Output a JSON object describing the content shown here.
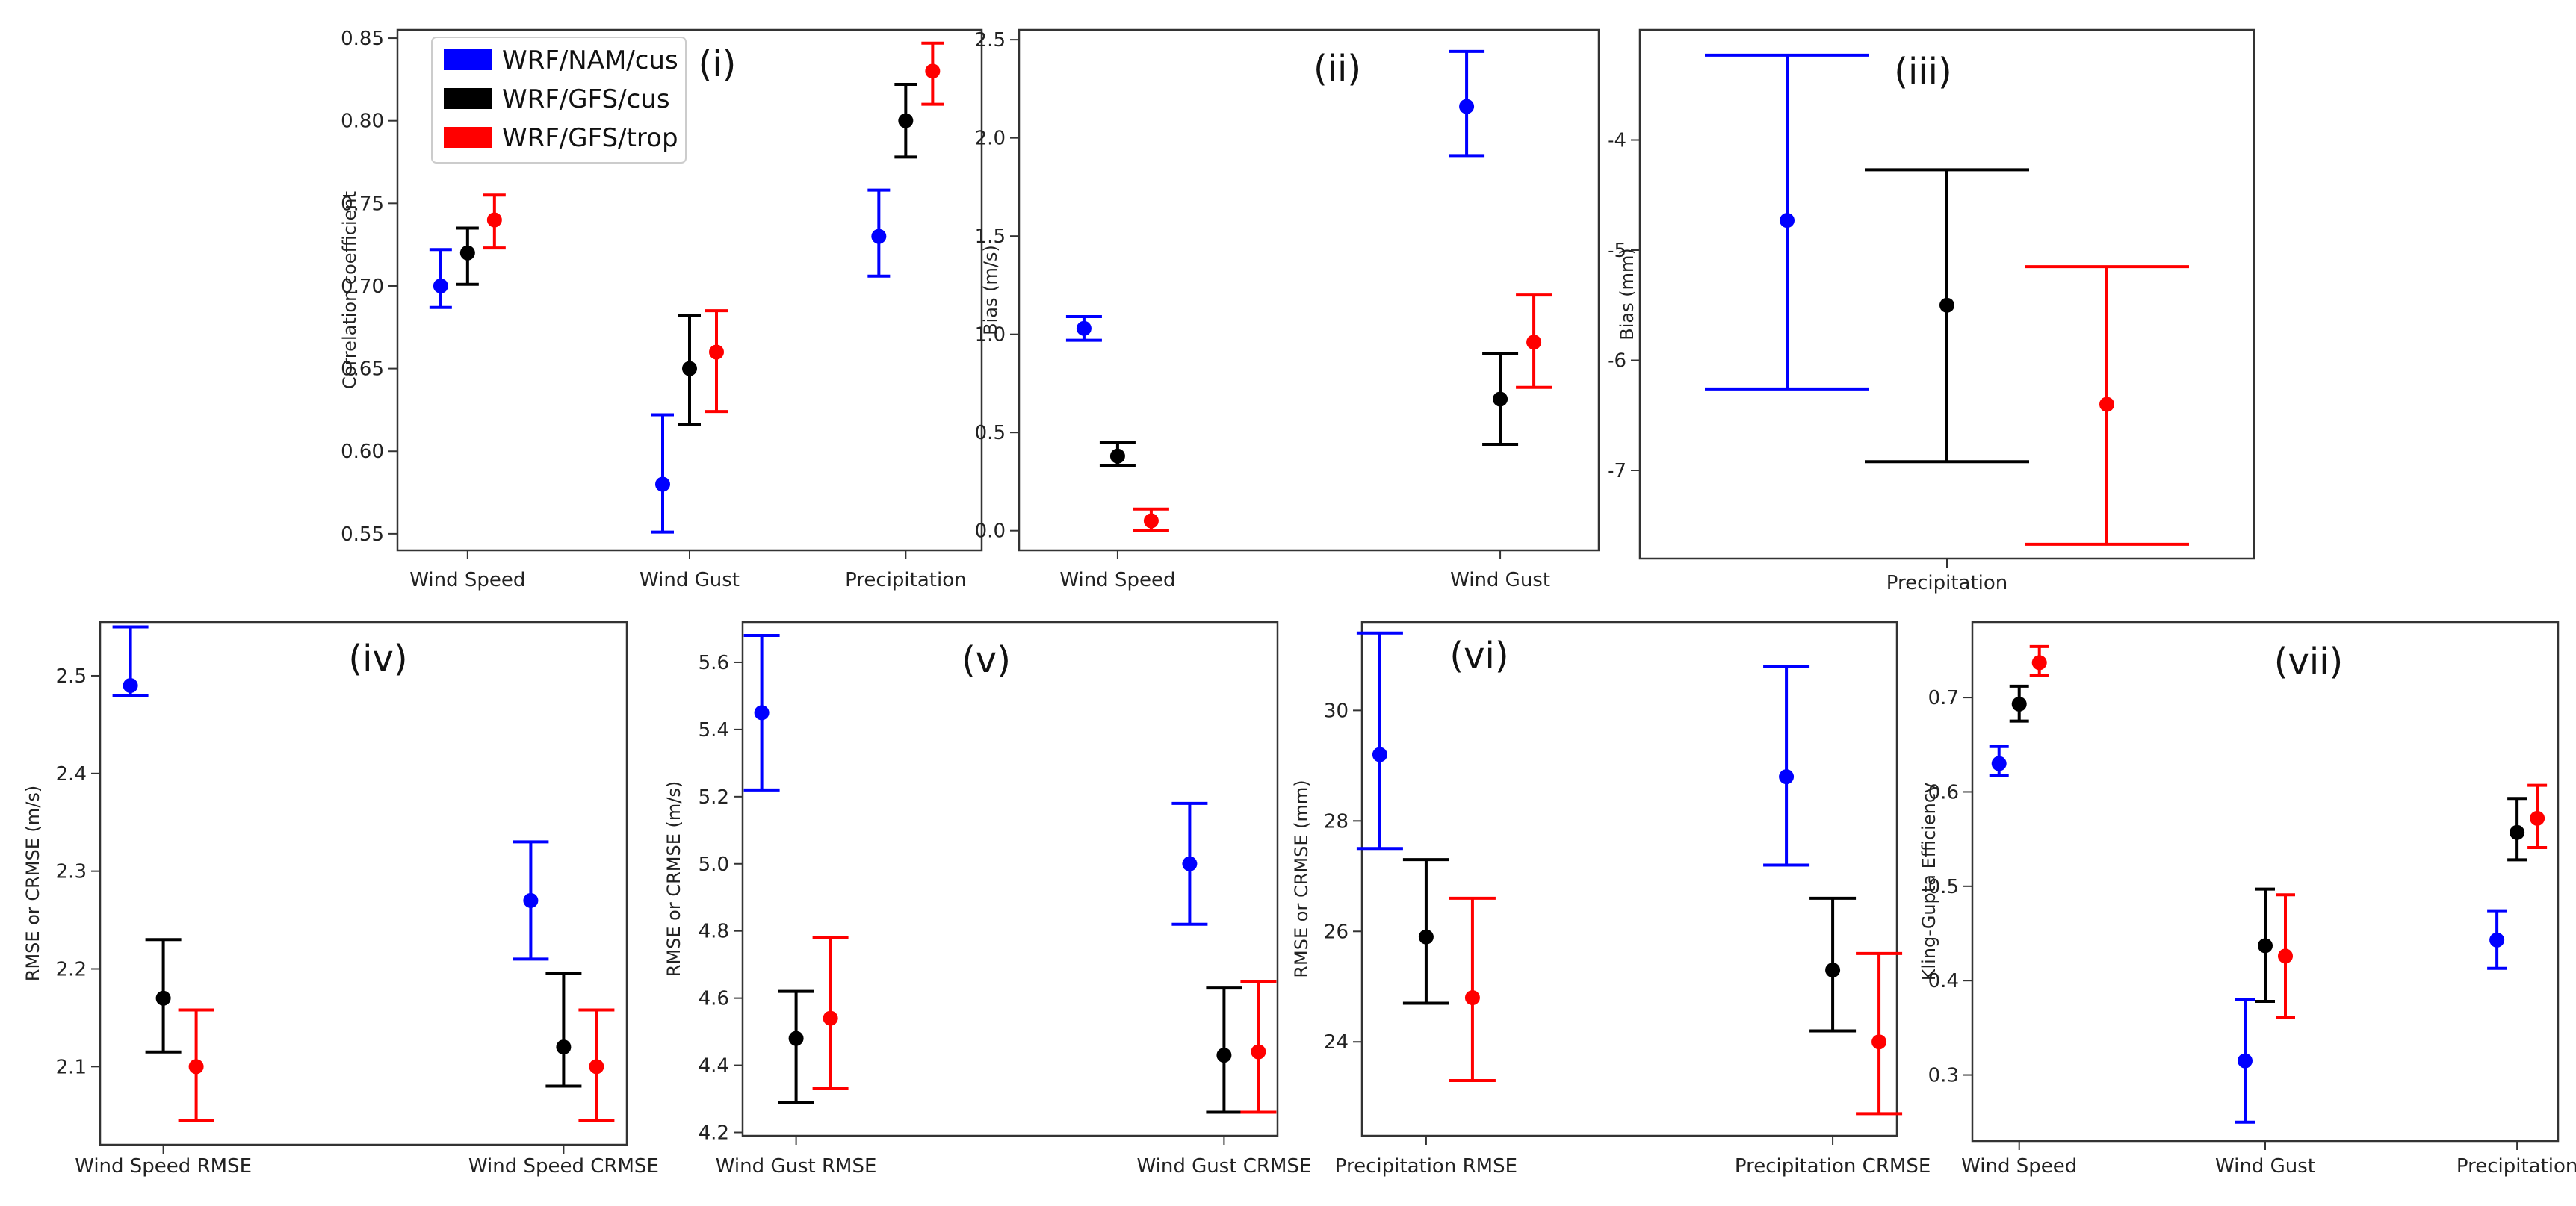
{
  "legend": {
    "entries": [
      {
        "label": "WRF/NAM/cus",
        "color": "#0000ff"
      },
      {
        "label": "WRF/GFS/cus",
        "color": "#000000"
      },
      {
        "label": "WRF/GFS/trop",
        "color": "#ff0000"
      }
    ]
  },
  "chart_data": [
    {
      "type": "scatter",
      "error_bars": true,
      "panel_label": "(i)",
      "ylabel": "Correlation coefficient",
      "categories": [
        "Wind Speed",
        "Wind Gust",
        "Precipitation"
      ],
      "ylim": [
        0.54,
        0.855
      ],
      "yticks": [
        "0.55",
        "0.60",
        "0.65",
        "0.70",
        "0.75",
        "0.80",
        "0.85"
      ],
      "series": [
        {
          "name": "WRF/NAM/cus",
          "color": "#0000ff",
          "values": [
            0.7,
            0.58,
            0.73
          ],
          "err_low": [
            0.687,
            0.551,
            0.706
          ],
          "err_high": [
            0.722,
            0.622,
            0.758
          ]
        },
        {
          "name": "WRF/GFS/cus",
          "color": "#000000",
          "values": [
            0.72,
            0.65,
            0.8
          ],
          "err_low": [
            0.701,
            0.616,
            0.778
          ],
          "err_high": [
            0.735,
            0.682,
            0.822
          ]
        },
        {
          "name": "WRF/GFS/trop",
          "color": "#ff0000",
          "values": [
            0.74,
            0.66,
            0.83
          ],
          "err_low": [
            0.723,
            0.624,
            0.81
          ],
          "err_high": [
            0.755,
            0.685,
            0.847
          ]
        }
      ]
    },
    {
      "type": "scatter",
      "error_bars": true,
      "panel_label": "(ii)",
      "ylabel": "Bias (m/s)",
      "categories": [
        "Wind Speed",
        "Wind Gust"
      ],
      "ylim": [
        -0.1,
        2.55
      ],
      "yticks": [
        "0.0",
        "0.5",
        "1.0",
        "1.5",
        "2.0",
        "2.5"
      ],
      "series": [
        {
          "name": "WRF/NAM/cus",
          "color": "#0000ff",
          "values": [
            1.03,
            2.16
          ],
          "err_low": [
            0.97,
            1.91
          ],
          "err_high": [
            1.09,
            2.44
          ]
        },
        {
          "name": "WRF/GFS/cus",
          "color": "#000000",
          "values": [
            0.38,
            0.67
          ],
          "err_low": [
            0.33,
            0.44
          ],
          "err_high": [
            0.45,
            0.9
          ]
        },
        {
          "name": "WRF/GFS/trop",
          "color": "#ff0000",
          "values": [
            0.05,
            0.96
          ],
          "err_low": [
            0.0,
            0.73
          ],
          "err_high": [
            0.11,
            1.2
          ]
        }
      ]
    },
    {
      "type": "scatter",
      "error_bars": true,
      "panel_label": "(iii)",
      "ylabel": "Bias (mm)",
      "categories": [
        "Precipitation"
      ],
      "ylim": [
        -7.8,
        -3.0
      ],
      "yticks": [
        "-7",
        "-6",
        "-5",
        "-4"
      ],
      "series": [
        {
          "name": "WRF/NAM/cus",
          "color": "#0000ff",
          "values": [
            -4.73
          ],
          "err_low": [
            -6.26
          ],
          "err_high": [
            -3.23
          ]
        },
        {
          "name": "WRF/GFS/cus",
          "color": "#000000",
          "values": [
            -5.5
          ],
          "err_low": [
            -6.92
          ],
          "err_high": [
            -4.27
          ]
        },
        {
          "name": "WRF/GFS/trop",
          "color": "#ff0000",
          "values": [
            -6.4
          ],
          "err_low": [
            -7.67
          ],
          "err_high": [
            -5.15
          ]
        }
      ]
    },
    {
      "type": "scatter",
      "error_bars": true,
      "panel_label": "(iv)",
      "ylabel": "RMSE or CRMSE (m/s)",
      "categories": [
        "Wind Speed RMSE",
        "Wind Speed CRMSE"
      ],
      "ylim": [
        2.02,
        2.555
      ],
      "yticks": [
        "2.1",
        "2.2",
        "2.3",
        "2.4",
        "2.5"
      ],
      "series": [
        {
          "name": "WRF/NAM/cus",
          "color": "#0000ff",
          "values": [
            2.49,
            2.27
          ],
          "err_low": [
            2.48,
            2.21
          ],
          "err_high": [
            2.55,
            2.33
          ]
        },
        {
          "name": "WRF/GFS/cus",
          "color": "#000000",
          "values": [
            2.17,
            2.12
          ],
          "err_low": [
            2.115,
            2.08
          ],
          "err_high": [
            2.23,
            2.195
          ]
        },
        {
          "name": "WRF/GFS/trop",
          "color": "#ff0000",
          "values": [
            2.1,
            2.1
          ],
          "err_low": [
            2.045,
            2.045
          ],
          "err_high": [
            2.158,
            2.158
          ]
        }
      ]
    },
    {
      "type": "scatter",
      "error_bars": true,
      "panel_label": "(v)",
      "ylabel": "RMSE or CRMSE (m/s)",
      "categories": [
        "Wind Gust RMSE",
        "Wind Gust CRMSE"
      ],
      "ylim": [
        4.19,
        5.72
      ],
      "yticks": [
        "4.2",
        "4.4",
        "4.6",
        "4.8",
        "5.0",
        "5.2",
        "5.4",
        "5.6"
      ],
      "series": [
        {
          "name": "WRF/NAM/cus",
          "color": "#0000ff",
          "values": [
            5.45,
            5.0
          ],
          "err_low": [
            5.22,
            4.82
          ],
          "err_high": [
            5.68,
            5.18
          ]
        },
        {
          "name": "WRF/GFS/cus",
          "color": "#000000",
          "values": [
            4.48,
            4.43
          ],
          "err_low": [
            4.29,
            4.26
          ],
          "err_high": [
            4.62,
            4.63
          ]
        },
        {
          "name": "WRF/GFS/trop",
          "color": "#ff0000",
          "values": [
            4.54,
            4.44
          ],
          "err_low": [
            4.33,
            4.26
          ],
          "err_high": [
            4.78,
            4.65
          ]
        }
      ]
    },
    {
      "type": "scatter",
      "error_bars": true,
      "panel_label": "(vi)",
      "ylabel": "RMSE or CRMSE (mm)",
      "categories": [
        "Precipitation RMSE",
        "Precipitation  CRMSE"
      ],
      "ylim": [
        22.3,
        31.6
      ],
      "yticks": [
        "24",
        "26",
        "28",
        "30"
      ],
      "series": [
        {
          "name": "WRF/NAM/cus",
          "color": "#0000ff",
          "values": [
            29.2,
            28.8
          ],
          "err_low": [
            27.5,
            27.2
          ],
          "err_high": [
            31.4,
            30.8
          ]
        },
        {
          "name": "WRF/GFS/cus",
          "color": "#000000",
          "values": [
            25.9,
            25.3
          ],
          "err_low": [
            24.7,
            24.2
          ],
          "err_high": [
            27.3,
            26.6
          ]
        },
        {
          "name": "WRF/GFS/trop",
          "color": "#ff0000",
          "values": [
            24.8,
            24.0
          ],
          "err_low": [
            23.3,
            22.7
          ],
          "err_high": [
            26.6,
            25.6
          ]
        }
      ]
    },
    {
      "type": "scatter",
      "error_bars": true,
      "panel_label": "(vii)",
      "ylabel": "Kling-Gupta Efficiency",
      "categories": [
        "Wind Speed",
        "Wind Gust",
        "Precipitation"
      ],
      "ylim": [
        0.23,
        0.78
      ],
      "yticks": [
        "0.3",
        "0.4",
        "0.5",
        "0.6",
        "0.7"
      ],
      "series": [
        {
          "name": "WRF/NAM/cus",
          "color": "#0000ff",
          "values": [
            0.63,
            0.315,
            0.443
          ],
          "err_low": [
            0.617,
            0.25,
            0.413
          ],
          "err_high": [
            0.648,
            0.38,
            0.474
          ]
        },
        {
          "name": "WRF/GFS/cus",
          "color": "#000000",
          "values": [
            0.693,
            0.437,
            0.557
          ],
          "err_low": [
            0.675,
            0.378,
            0.528
          ],
          "err_high": [
            0.712,
            0.497,
            0.593
          ]
        },
        {
          "name": "WRF/GFS/trop",
          "color": "#ff0000",
          "values": [
            0.737,
            0.426,
            0.572
          ],
          "err_low": [
            0.723,
            0.361,
            0.541
          ],
          "err_high": [
            0.754,
            0.491,
            0.607
          ]
        }
      ]
    }
  ]
}
